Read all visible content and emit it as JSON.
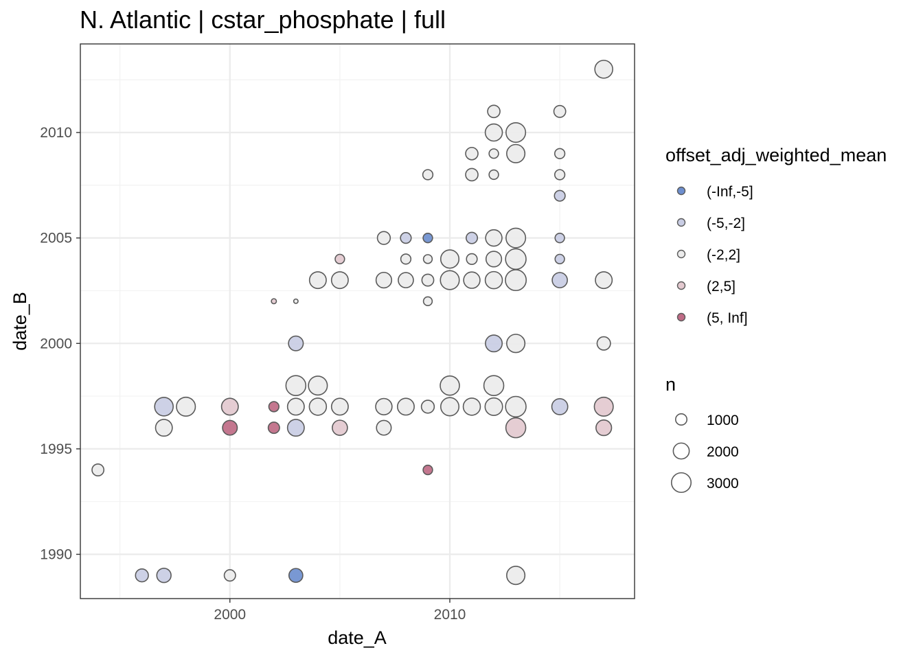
{
  "chart_data": {
    "type": "scatter",
    "title": "N. Atlantic | cstar_phosphate | full",
    "xlabel": "date_A",
    "ylabel": "date_B",
    "xlim": [
      1993.2,
      2018.4
    ],
    "ylim": [
      1987.9,
      2014.2
    ],
    "x_ticks": [
      2000,
      2010
    ],
    "y_ticks": [
      1990,
      1995,
      2000,
      2005,
      2010
    ],
    "grid": true,
    "legend_position": "right",
    "color_legend": {
      "title": "offset_adj_weighted_mean",
      "entries": [
        {
          "label": "(-Inf,-5]",
          "color": "#6e8fcf"
        },
        {
          "label": "(-5,-2]",
          "color": "#c9cde4"
        },
        {
          "label": "(-2,2]",
          "color": "#ebebeb"
        },
        {
          "label": "(2,5]",
          "color": "#e3c9cf"
        },
        {
          "label": "(5, Inf]",
          "color": "#bf6b86"
        }
      ]
    },
    "size_legend": {
      "title": "n",
      "entries": [
        {
          "label": "1000",
          "n": 1000
        },
        {
          "label": "2000",
          "n": 2000
        },
        {
          "label": "3000",
          "n": 3000
        }
      ]
    },
    "points": [
      {
        "x": 2017,
        "y": 2013,
        "n": 2500,
        "cat": "(-2,2]"
      },
      {
        "x": 2012,
        "y": 2011,
        "n": 1200,
        "cat": "(-2,2]"
      },
      {
        "x": 2015,
        "y": 2011,
        "n": 1100,
        "cat": "(-2,2]"
      },
      {
        "x": 2012,
        "y": 2010,
        "n": 2300,
        "cat": "(-2,2]"
      },
      {
        "x": 2013,
        "y": 2010,
        "n": 3000,
        "cat": "(-2,2]"
      },
      {
        "x": 2011,
        "y": 2009,
        "n": 1200,
        "cat": "(-2,2]"
      },
      {
        "x": 2012,
        "y": 2009,
        "n": 700,
        "cat": "(-2,2]"
      },
      {
        "x": 2013,
        "y": 2009,
        "n": 2600,
        "cat": "(-2,2]"
      },
      {
        "x": 2015,
        "y": 2009,
        "n": 800,
        "cat": "(-2,2]"
      },
      {
        "x": 2009,
        "y": 2008,
        "n": 800,
        "cat": "(-2,2]"
      },
      {
        "x": 2011,
        "y": 2008,
        "n": 1200,
        "cat": "(-2,2]"
      },
      {
        "x": 2012,
        "y": 2008,
        "n": 700,
        "cat": "(-2,2]"
      },
      {
        "x": 2015,
        "y": 2008,
        "n": 800,
        "cat": "(-2,2]"
      },
      {
        "x": 2015,
        "y": 2007,
        "n": 900,
        "cat": "(-5,-2]"
      },
      {
        "x": 2007,
        "y": 2005,
        "n": 1300,
        "cat": "(-2,2]"
      },
      {
        "x": 2008,
        "y": 2005,
        "n": 900,
        "cat": "(-5,-2]"
      },
      {
        "x": 2009,
        "y": 2005,
        "n": 700,
        "cat": "(-Inf,-5]"
      },
      {
        "x": 2011,
        "y": 2005,
        "n": 1000,
        "cat": "(-5,-2]"
      },
      {
        "x": 2012,
        "y": 2005,
        "n": 2100,
        "cat": "(-2,2]"
      },
      {
        "x": 2013,
        "y": 2005,
        "n": 3000,
        "cat": "(-2,2]"
      },
      {
        "x": 2015,
        "y": 2005,
        "n": 700,
        "cat": "(-5,-2]"
      },
      {
        "x": 2005,
        "y": 2004,
        "n": 700,
        "cat": "(2,5]"
      },
      {
        "x": 2008,
        "y": 2004,
        "n": 800,
        "cat": "(-2,2]"
      },
      {
        "x": 2009,
        "y": 2004,
        "n": 600,
        "cat": "(-2,2]"
      },
      {
        "x": 2010,
        "y": 2004,
        "n": 2600,
        "cat": "(-2,2]"
      },
      {
        "x": 2011,
        "y": 2004,
        "n": 900,
        "cat": "(-2,2]"
      },
      {
        "x": 2012,
        "y": 2004,
        "n": 1900,
        "cat": "(-2,2]"
      },
      {
        "x": 2013,
        "y": 2004,
        "n": 3300,
        "cat": "(-2,2]"
      },
      {
        "x": 2015,
        "y": 2004,
        "n": 700,
        "cat": "(-5,-2]"
      },
      {
        "x": 2004,
        "y": 2003,
        "n": 2200,
        "cat": "(-2,2]"
      },
      {
        "x": 2005,
        "y": 2003,
        "n": 2200,
        "cat": "(-2,2]"
      },
      {
        "x": 2007,
        "y": 2003,
        "n": 1900,
        "cat": "(-2,2]"
      },
      {
        "x": 2008,
        "y": 2003,
        "n": 1800,
        "cat": "(-2,2]"
      },
      {
        "x": 2009,
        "y": 2003,
        "n": 1100,
        "cat": "(-2,2]"
      },
      {
        "x": 2010,
        "y": 2003,
        "n": 2800,
        "cat": "(-2,2]"
      },
      {
        "x": 2011,
        "y": 2003,
        "n": 2100,
        "cat": "(-2,2]"
      },
      {
        "x": 2012,
        "y": 2003,
        "n": 2300,
        "cat": "(-2,2]"
      },
      {
        "x": 2013,
        "y": 2003,
        "n": 3400,
        "cat": "(-2,2]"
      },
      {
        "x": 2015,
        "y": 2003,
        "n": 1800,
        "cat": "(-5,-2]"
      },
      {
        "x": 2017,
        "y": 2003,
        "n": 2200,
        "cat": "(-2,2]"
      },
      {
        "x": 2002,
        "y": 2002,
        "n": 200,
        "cat": "(2,5]"
      },
      {
        "x": 2003,
        "y": 2002,
        "n": 150,
        "cat": "(-2,2]"
      },
      {
        "x": 2009,
        "y": 2002,
        "n": 600,
        "cat": "(-2,2]"
      },
      {
        "x": 2003,
        "y": 2000,
        "n": 1700,
        "cat": "(-5,-2]"
      },
      {
        "x": 2012,
        "y": 2000,
        "n": 2200,
        "cat": "(-5,-2]"
      },
      {
        "x": 2013,
        "y": 2000,
        "n": 2600,
        "cat": "(-2,2]"
      },
      {
        "x": 2017,
        "y": 2000,
        "n": 1400,
        "cat": "(-2,2]"
      },
      {
        "x": 2003,
        "y": 1998,
        "n": 3100,
        "cat": "(-2,2]"
      },
      {
        "x": 2004,
        "y": 1998,
        "n": 2800,
        "cat": "(-2,2]"
      },
      {
        "x": 2010,
        "y": 1998,
        "n": 2900,
        "cat": "(-2,2]"
      },
      {
        "x": 2012,
        "y": 1998,
        "n": 3100,
        "cat": "(-2,2]"
      },
      {
        "x": 1997,
        "y": 1997,
        "n": 2700,
        "cat": "(-5,-2]"
      },
      {
        "x": 1998,
        "y": 1997,
        "n": 2800,
        "cat": "(-2,2]"
      },
      {
        "x": 2000,
        "y": 1997,
        "n": 2200,
        "cat": "(2,5]"
      },
      {
        "x": 2002,
        "y": 1997,
        "n": 800,
        "cat": "(5, Inf]"
      },
      {
        "x": 2003,
        "y": 1997,
        "n": 2200,
        "cat": "(-2,2]"
      },
      {
        "x": 2004,
        "y": 1997,
        "n": 2300,
        "cat": "(-2,2]"
      },
      {
        "x": 2005,
        "y": 1997,
        "n": 2200,
        "cat": "(-2,2]"
      },
      {
        "x": 2007,
        "y": 1997,
        "n": 2100,
        "cat": "(-2,2]"
      },
      {
        "x": 2008,
        "y": 1997,
        "n": 2200,
        "cat": "(-2,2]"
      },
      {
        "x": 2009,
        "y": 1997,
        "n": 1300,
        "cat": "(-2,2]"
      },
      {
        "x": 2010,
        "y": 1997,
        "n": 2600,
        "cat": "(-2,2]"
      },
      {
        "x": 2011,
        "y": 1997,
        "n": 2300,
        "cat": "(-2,2]"
      },
      {
        "x": 2012,
        "y": 1997,
        "n": 2400,
        "cat": "(-2,2]"
      },
      {
        "x": 2013,
        "y": 1997,
        "n": 3300,
        "cat": "(-2,2]"
      },
      {
        "x": 2015,
        "y": 1997,
        "n": 2000,
        "cat": "(-5,-2]"
      },
      {
        "x": 2017,
        "y": 1997,
        "n": 2800,
        "cat": "(2,5]"
      },
      {
        "x": 1997,
        "y": 1996,
        "n": 2200,
        "cat": "(-2,2]"
      },
      {
        "x": 2000,
        "y": 1996,
        "n": 1700,
        "cat": "(5, Inf]"
      },
      {
        "x": 2002,
        "y": 1996,
        "n": 1000,
        "cat": "(5, Inf]"
      },
      {
        "x": 2003,
        "y": 1996,
        "n": 2200,
        "cat": "(-5,-2]"
      },
      {
        "x": 2005,
        "y": 1996,
        "n": 1800,
        "cat": "(2,5]"
      },
      {
        "x": 2007,
        "y": 1996,
        "n": 1700,
        "cat": "(-2,2]"
      },
      {
        "x": 2013,
        "y": 1996,
        "n": 3100,
        "cat": "(2,5]"
      },
      {
        "x": 2017,
        "y": 1996,
        "n": 1900,
        "cat": "(2,5]"
      },
      {
        "x": 1994,
        "y": 1994,
        "n": 1100,
        "cat": "(-2,2]"
      },
      {
        "x": 2009,
        "y": 1994,
        "n": 700,
        "cat": "(5, Inf]"
      },
      {
        "x": 1996,
        "y": 1989,
        "n": 1300,
        "cat": "(-5,-2]"
      },
      {
        "x": 1997,
        "y": 1989,
        "n": 1600,
        "cat": "(-5,-2]"
      },
      {
        "x": 2000,
        "y": 1989,
        "n": 1000,
        "cat": "(-2,2]"
      },
      {
        "x": 2003,
        "y": 1989,
        "n": 1500,
        "cat": "(-Inf,-5]"
      },
      {
        "x": 2013,
        "y": 1989,
        "n": 2600,
        "cat": "(-2,2]"
      }
    ]
  }
}
